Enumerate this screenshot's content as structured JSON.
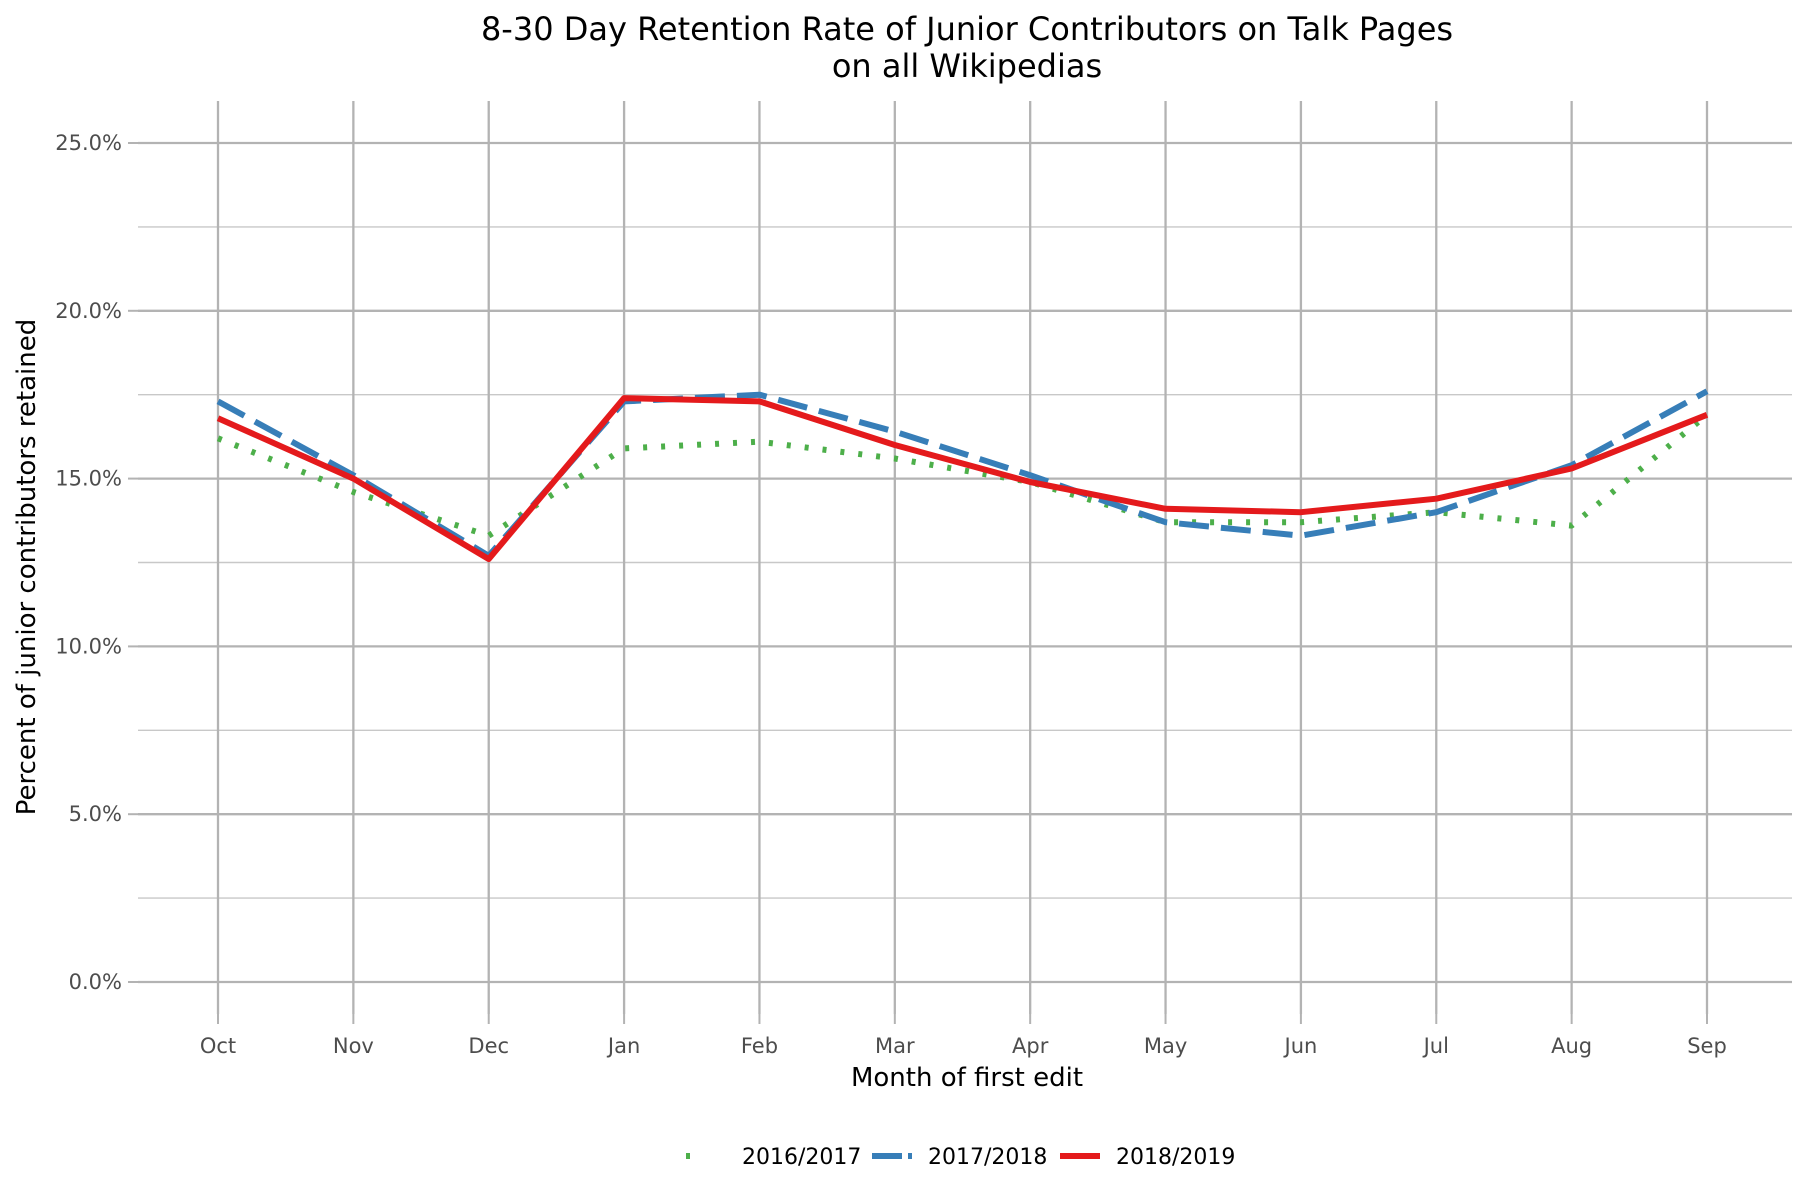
{
  "chart_data": {
    "type": "line",
    "title": "8-30 Day Retention Rate of Junior Contributors on Talk Pages",
    "subtitle": "on all Wikipedias",
    "xlabel": "Month of first edit",
    "ylabel": "Percent of junior contributors retained",
    "categories": [
      "Oct",
      "Nov",
      "Dec",
      "Jan",
      "Feb",
      "Mar",
      "Apr",
      "May",
      "Jun",
      "Jul",
      "Aug",
      "Sep"
    ],
    "y_ticks": [
      0,
      5,
      10,
      15,
      20,
      25
    ],
    "y_tick_labels": [
      "0.0%",
      "5.0%",
      "10.0%",
      "15.0%",
      "20.0%",
      "25.0%"
    ],
    "ylim": [
      0,
      26.2
    ],
    "grid": true,
    "legend_position": "bottom",
    "series": [
      {
        "name": "2016/2017",
        "color": "#4daf4a",
        "line_style": "dotted",
        "values": [
          16.2,
          14.6,
          13.3,
          15.9,
          16.1,
          15.6,
          14.9,
          13.7,
          13.7,
          14.0,
          13.6,
          16.9
        ]
      },
      {
        "name": "2017/2018",
        "color": "#377eb8",
        "line_style": "dashed",
        "values": [
          17.3,
          15.1,
          12.7,
          17.3,
          17.5,
          16.4,
          15.1,
          13.7,
          13.3,
          14.0,
          15.4,
          17.6
        ]
      },
      {
        "name": "2018/2019",
        "color": "#e41a1c",
        "line_style": "solid",
        "values": [
          16.8,
          15.0,
          12.6,
          17.4,
          17.3,
          16.0,
          14.9,
          14.1,
          14.0,
          14.4,
          15.3,
          16.9
        ]
      }
    ]
  }
}
